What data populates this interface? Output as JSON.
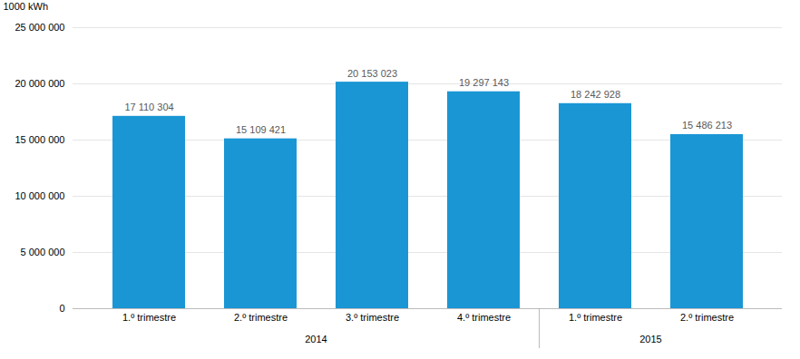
{
  "chart_data": {
    "type": "bar",
    "categories": [
      "1.º trimestre",
      "2.º trimestre",
      "3.º trimestre",
      "4.º trimestre",
      "1.º trimestre",
      "2.º trimestre"
    ],
    "groups": [
      "2014",
      "2014",
      "2014",
      "2014",
      "2015",
      "2015"
    ],
    "values": [
      17110304,
      15109421,
      20153023,
      19297143,
      18242928,
      15486213
    ],
    "value_labels": [
      "17 110 304",
      "15 109 421",
      "20 153 023",
      "19 297 143",
      "18 242 928",
      "15 486 213"
    ],
    "data_labels": true,
    "color": "#1a96d4",
    "ylabel": "1000 kWh",
    "ylim": [
      0,
      25000000
    ],
    "yticks": [
      0,
      {
        "value": 5000000,
        "label": "5 000 000"
      },
      {
        "value": 10000000,
        "label": "10 000 000"
      },
      {
        "value": 15000000,
        "label": "15 000 000"
      },
      {
        "value": 20000000,
        "label": "20 000 000"
      },
      {
        "value": 25000000,
        "label": "25 000 000"
      }
    ],
    "grid": true
  }
}
